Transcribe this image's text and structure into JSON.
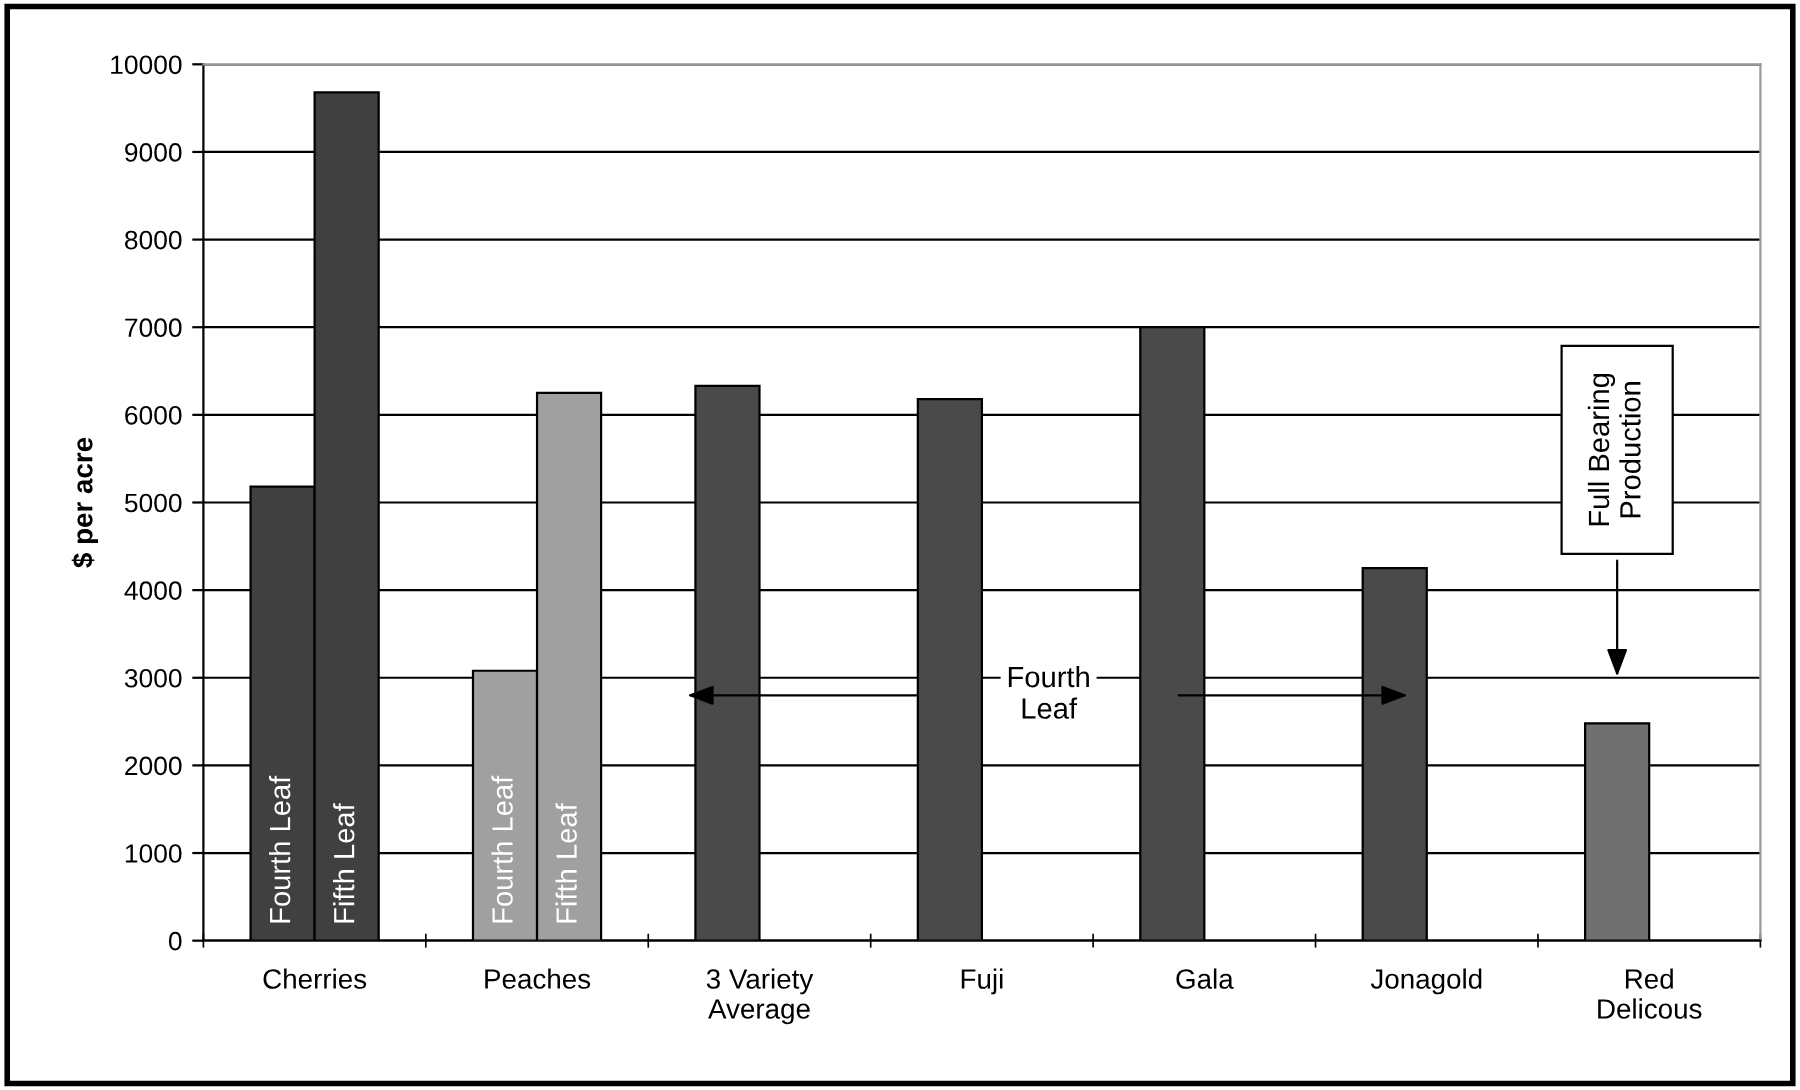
{
  "chart_data": {
    "type": "bar",
    "categories": [
      "Cherries",
      "Peaches",
      "3 Variety\nAverage",
      "Fuji",
      "Gala",
      "Jonagold",
      "Red\nDelicous"
    ],
    "series": [
      {
        "colors": [
          "#404040",
          "#a0a0a0",
          "#4a4a4a",
          "#4a4a4a",
          "#4a4a4a",
          "#4a4a4a",
          "#707070"
        ],
        "values": [
          5180,
          3080,
          6330,
          6180,
          7000,
          4250,
          2480
        ]
      },
      {
        "colors": [
          "#404040",
          "#a0a0a0",
          null,
          null,
          null,
          null,
          null
        ],
        "values": [
          9680,
          6250,
          null,
          null,
          null,
          null,
          null
        ]
      }
    ],
    "ylabel": "$ per acre",
    "ylim": [
      0,
      10000
    ],
    "yticks": [
      0,
      1000,
      2000,
      3000,
      4000,
      5000,
      6000,
      7000,
      8000,
      9000,
      10000
    ],
    "grid": "y",
    "annotations": [
      "Fourth Leaf",
      "Fifth Leaf",
      "Fourth Leaf",
      "Fifth Leaf",
      "Fourth\nLeaf",
      "Full Bearing\nProduction"
    ]
  }
}
